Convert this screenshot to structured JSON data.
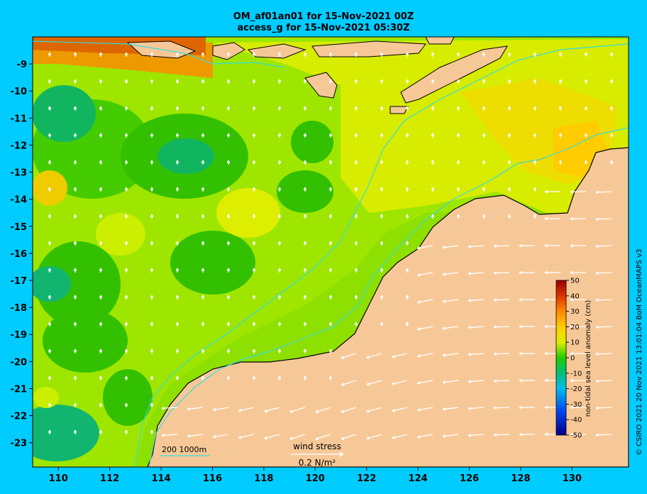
{
  "title_line1": "OM_af01an01 for 15-Nov-2021 00Z",
  "title_line2": "access_g for 15-Nov-2021 05:30Z",
  "copyright": "© CSIRO 2021  20 Nov 2021 13:01:04 BoM OceanMAPS v3",
  "colorbar": {
    "label": "non-tidal sea level anomaly (cm)",
    "ticks": [
      "50",
      "40",
      "30",
      "20",
      "10",
      "0",
      "-10",
      "-20",
      "-30",
      "-40",
      "-50"
    ],
    "range": [
      -50,
      50
    ]
  },
  "axes": {
    "x_ticks": [
      "110",
      "112",
      "114",
      "116",
      "118",
      "120",
      "122",
      "124",
      "126",
      "128",
      "130"
    ],
    "y_ticks": [
      "-9",
      "-10",
      "-11",
      "-12",
      "-13",
      "-14",
      "-15",
      "-16",
      "-17",
      "-18",
      "-19",
      "-20",
      "-21",
      "-22",
      "-23"
    ],
    "lon_range": [
      109,
      132.2
    ],
    "lat_range": [
      -23.9,
      -8
    ]
  },
  "legend": {
    "depth_label": "200  1000m",
    "wind_label": "wind stress",
    "wind_value": "0.2 N/m²"
  },
  "colors": {
    "background": "#00ccff",
    "land": "#f7c897",
    "contour": "#33dddd"
  }
}
